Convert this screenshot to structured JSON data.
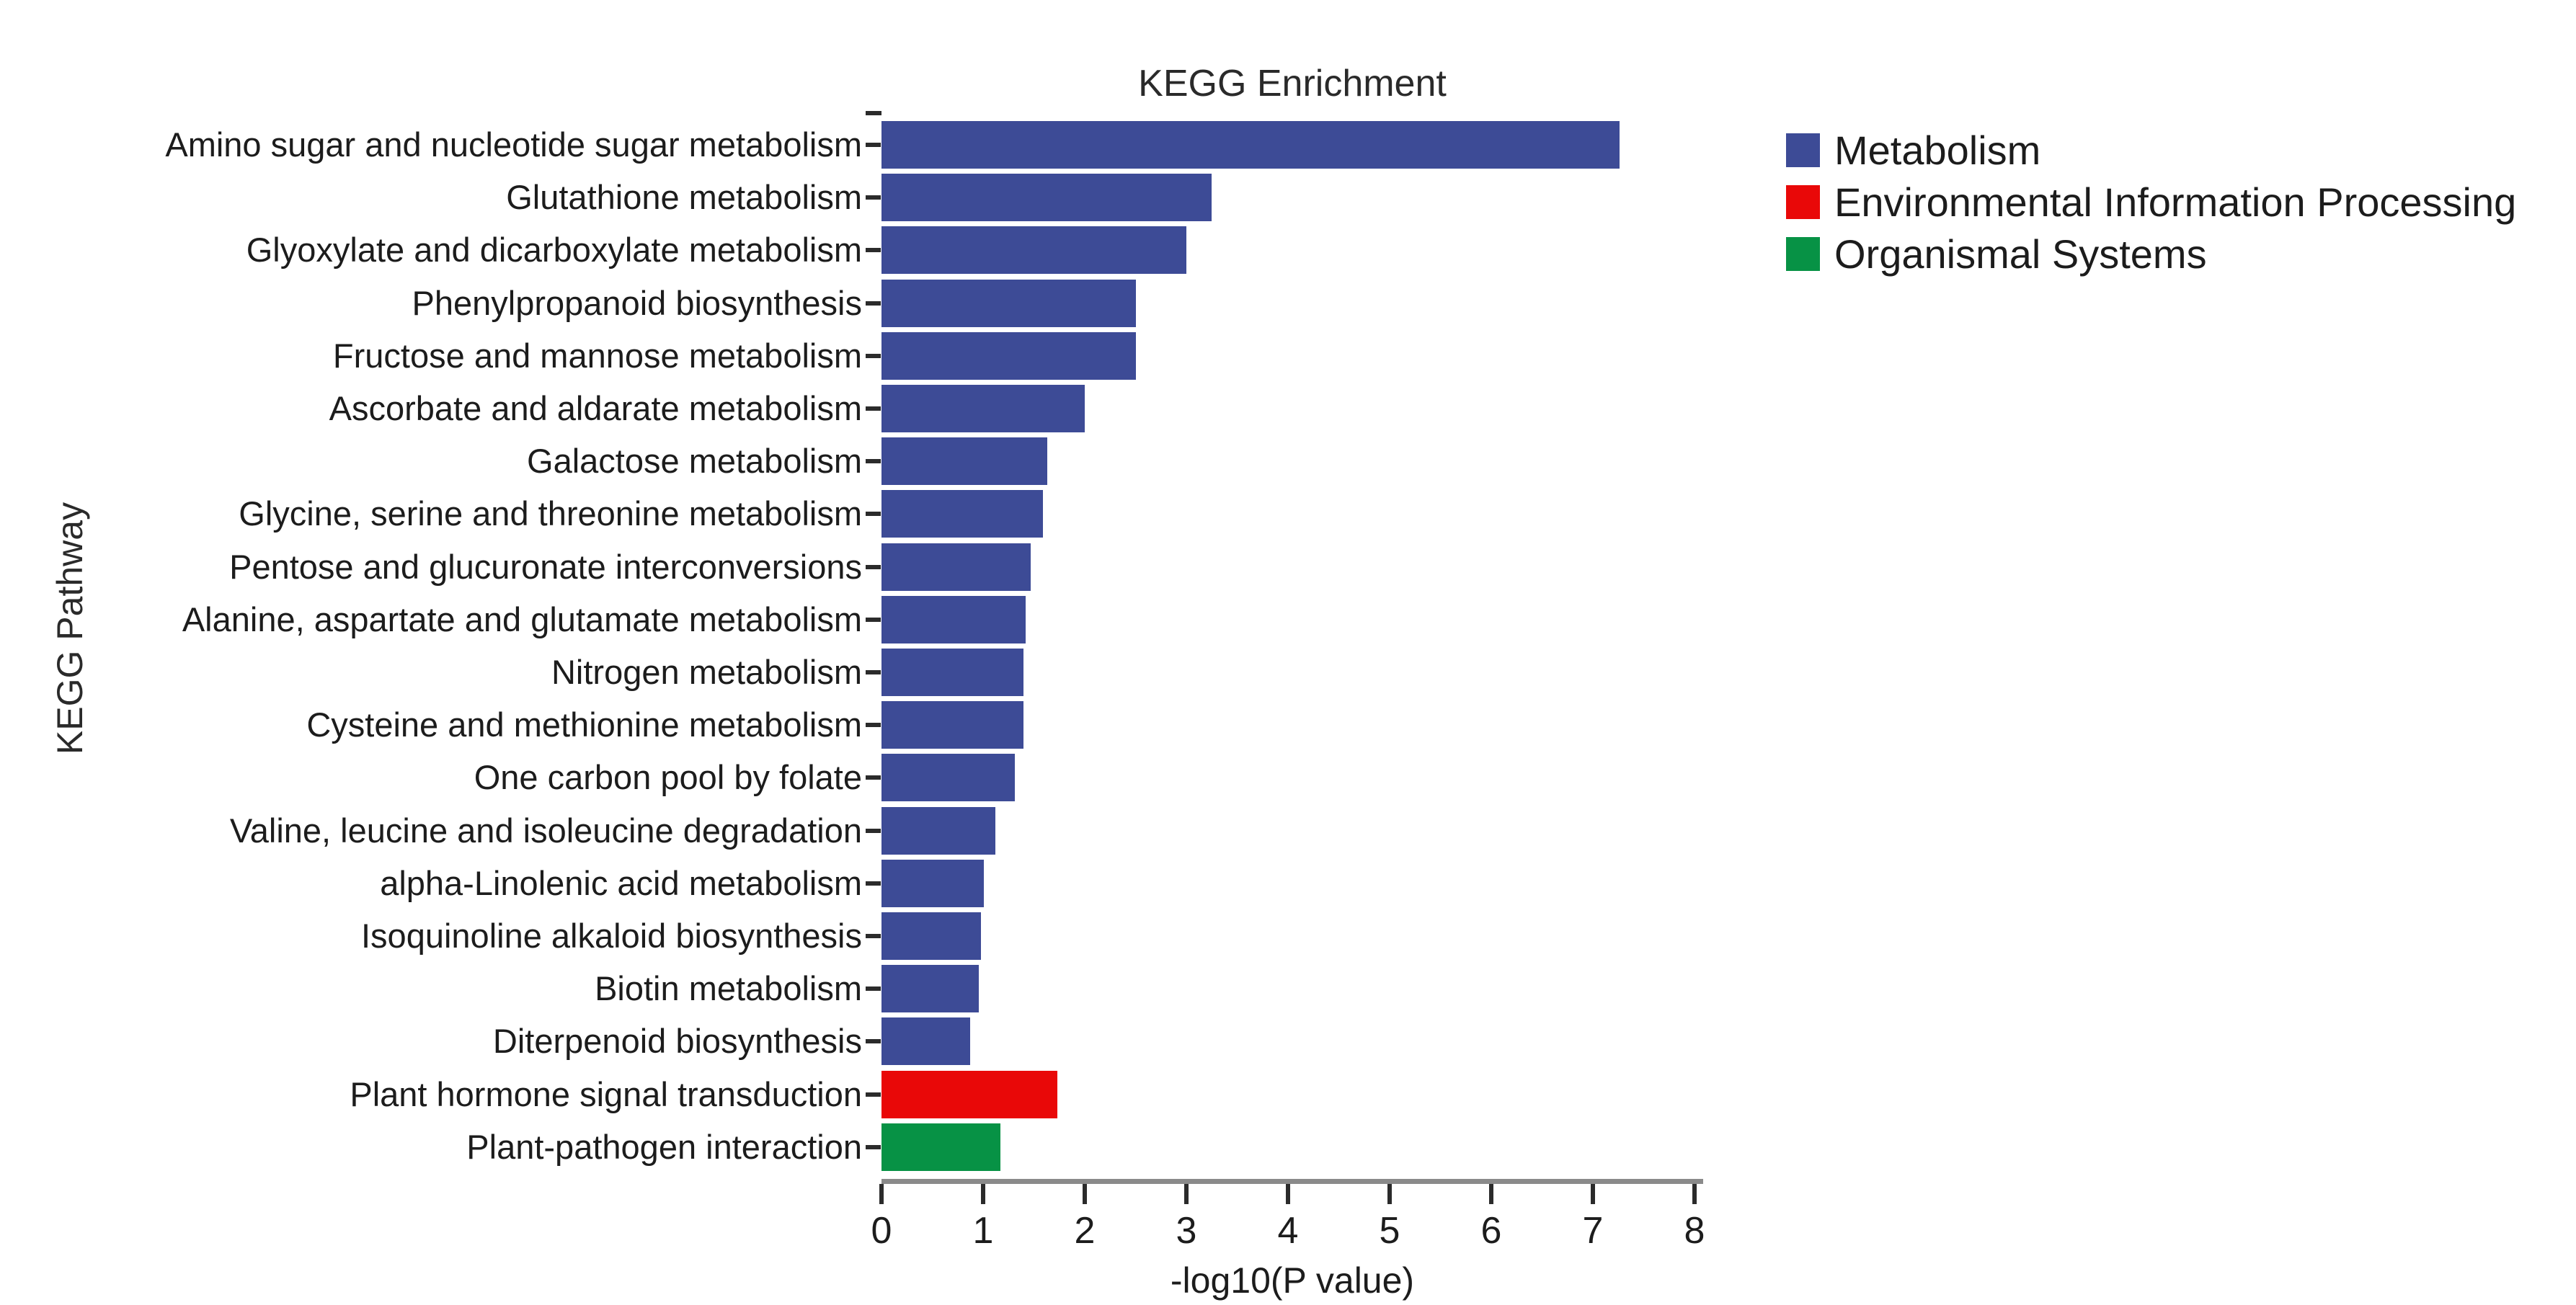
{
  "title": "KEGG Enrichment",
  "chart_data": {
    "type": "bar",
    "orientation": "horizontal",
    "title": "KEGG Enrichment",
    "xlabel": "-log10(P value)",
    "ylabel": "KEGG Pathway",
    "xlim": [
      0,
      8
    ],
    "x_ticks": [
      0,
      1,
      2,
      3,
      4,
      5,
      6,
      7,
      8
    ],
    "grid": false,
    "legend_position": "top-right",
    "categories": [
      "Amino sugar and nucleotide sugar metabolism",
      "Glutathione metabolism",
      "Glyoxylate and dicarboxylate metabolism",
      "Phenylpropanoid biosynthesis",
      "Fructose and mannose metabolism",
      "Ascorbate and aldarate metabolism",
      "Galactose metabolism",
      "Glycine, serine and threonine metabolism",
      "Pentose and glucuronate interconversions",
      "Alanine, aspartate and glutamate metabolism",
      "Nitrogen metabolism",
      "Cysteine and methionine metabolism",
      "One carbon pool by folate",
      "Valine, leucine and isoleucine degradation",
      "alpha-Linolenic acid metabolism",
      "Isoquinoline alkaloid biosynthesis",
      "Biotin metabolism",
      "Diterpenoid biosynthesis",
      "Plant hormone signal transduction",
      "Plant-pathogen interaction"
    ],
    "values": [
      7.26,
      3.25,
      3.0,
      2.5,
      2.5,
      2.0,
      1.63,
      1.59,
      1.47,
      1.42,
      1.4,
      1.4,
      1.31,
      1.12,
      1.01,
      0.98,
      0.96,
      0.87,
      1.73,
      1.17
    ],
    "groups": [
      "Metabolism",
      "Metabolism",
      "Metabolism",
      "Metabolism",
      "Metabolism",
      "Metabolism",
      "Metabolism",
      "Metabolism",
      "Metabolism",
      "Metabolism",
      "Metabolism",
      "Metabolism",
      "Metabolism",
      "Metabolism",
      "Metabolism",
      "Metabolism",
      "Metabolism",
      "Metabolism",
      "Environmental Information Processing",
      "Organismal Systems"
    ],
    "colors": {
      "Metabolism": "#3D4B96",
      "Environmental Information Processing": "#E90808",
      "Organismal Systems": "#079245"
    },
    "legend": [
      {
        "label": "Metabolism",
        "color": "#3D4B96"
      },
      {
        "label": "Environmental Information Processing",
        "color": "#E90808"
      },
      {
        "label": "Organismal Systems",
        "color": "#079245"
      }
    ]
  }
}
